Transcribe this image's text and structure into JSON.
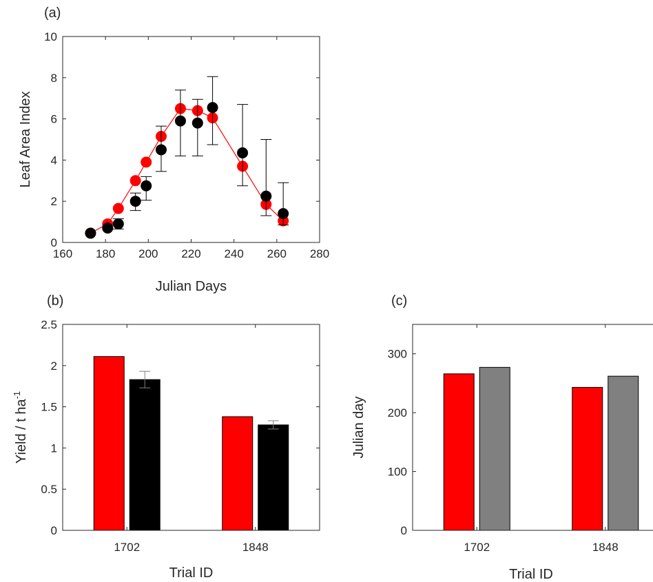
{
  "chart_data": [
    {
      "panel": "(a)",
      "type": "scatter",
      "xlabel": "Julian Days",
      "ylabel": "Leaf Area Index",
      "xlim": [
        160,
        280
      ],
      "ylim": [
        0,
        10
      ],
      "xticks": [
        160,
        180,
        200,
        220,
        240,
        260,
        280
      ],
      "yticks": [
        0,
        2,
        4,
        6,
        8,
        10
      ],
      "grid": false,
      "series": [
        {
          "color": "#ff0000",
          "connected": true,
          "x": [
            173,
            181,
            186,
            194,
            199,
            206,
            215,
            223,
            230,
            244,
            255,
            263
          ],
          "y": [
            0.45,
            0.9,
            1.65,
            3.0,
            3.9,
            5.15,
            6.5,
            6.4,
            6.05,
            3.7,
            1.85,
            1.05
          ]
        },
        {
          "color": "#000000",
          "connected": false,
          "x": [
            173,
            181,
            186,
            194,
            199,
            206,
            215,
            223,
            230,
            244,
            255,
            263
          ],
          "y": [
            0.45,
            0.7,
            0.9,
            2.0,
            2.75,
            4.5,
            5.9,
            5.8,
            6.55,
            4.35,
            2.25,
            1.4
          ],
          "err_low": [
            0.45,
            0.7,
            0.65,
            1.55,
            2.05,
            3.45,
            4.2,
            4.2,
            4.75,
            2.75,
            1.3,
            0.85
          ],
          "err_high": [
            0.45,
            0.7,
            1.15,
            2.4,
            3.2,
            5.65,
            7.4,
            6.95,
            8.05,
            6.7,
            5.0,
            2.9
          ]
        }
      ]
    },
    {
      "panel": "(b)",
      "type": "bar",
      "xlabel": "Trial ID",
      "ylabel": "Yield / t ha",
      "ylabel_sup": "-1",
      "categories": [
        "1702",
        "1848"
      ],
      "ylim": [
        0,
        2.5
      ],
      "yticks": [
        0,
        0.5,
        1,
        1.5,
        2,
        2.5
      ],
      "ytick_labels": [
        "0",
        "0.5",
        "1",
        "1.5",
        "2",
        "2.5"
      ],
      "grid": false,
      "series": [
        {
          "color": "#ff0000",
          "values": [
            2.11,
            1.38
          ]
        },
        {
          "color": "#000000",
          "values": [
            1.83,
            1.28
          ],
          "errors": [
            0.1,
            0.05
          ],
          "error_color": "#808080"
        }
      ]
    },
    {
      "panel": "(c)",
      "type": "bar",
      "xlabel": "Trial ID",
      "ylabel": "Julian day",
      "categories": [
        "1702",
        "1848"
      ],
      "ylim": [
        0,
        350
      ],
      "yticks": [
        0,
        100,
        200,
        300
      ],
      "ytick_labels": [
        "0",
        "100",
        "200",
        "300"
      ],
      "grid": false,
      "series": [
        {
          "color": "#ff0000",
          "values": [
            266,
            243
          ]
        },
        {
          "color": "#808080",
          "values": [
            277,
            262
          ]
        }
      ]
    }
  ]
}
